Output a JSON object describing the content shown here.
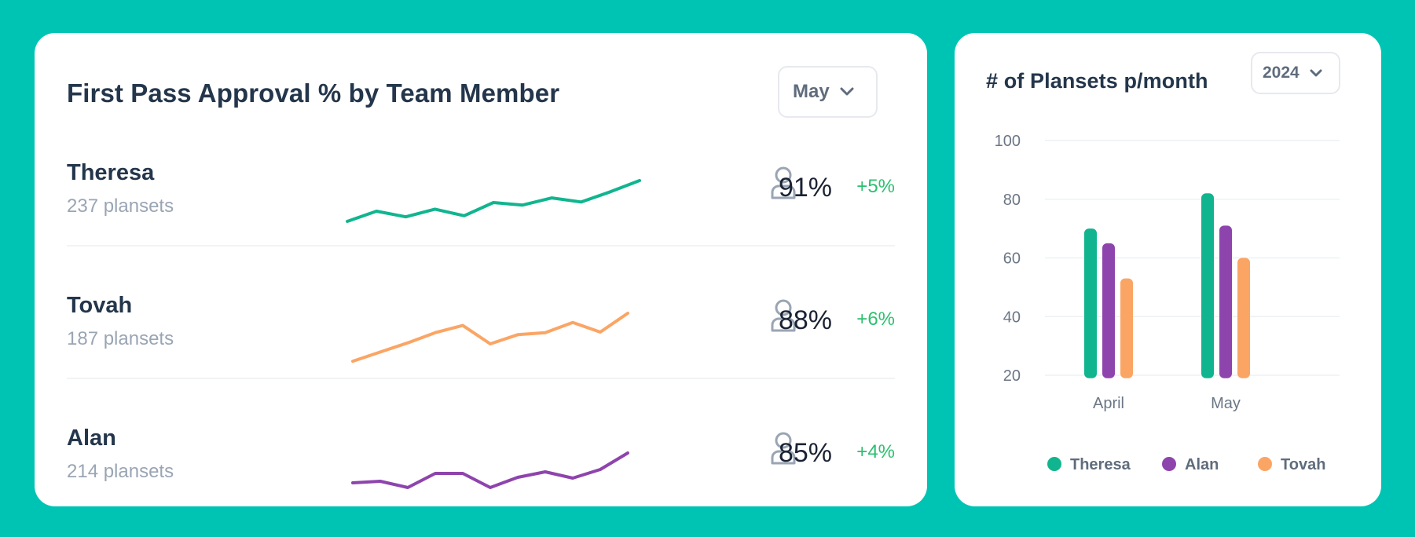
{
  "left_panel": {
    "title": "First Pass Approval % by Team Member",
    "month_select": "May",
    "members": [
      {
        "name": "Theresa",
        "count": "237 plansets",
        "percent": "91%",
        "delta": "+5%",
        "color": "#10B58F",
        "trend": [
          20,
          40,
          29,
          44,
          31,
          57,
          52,
          66,
          58,
          78,
          100
        ]
      },
      {
        "name": "Tovah",
        "count": "187 plansets",
        "percent": "88%",
        "delta": "+6%",
        "color": "#FBA565",
        "trend": [
          6,
          24,
          42,
          62,
          76,
          40,
          58,
          62,
          82,
          63,
          100
        ]
      },
      {
        "name": "Alan",
        "count": "214 plansets",
        "percent": "85%",
        "delta": "+4%",
        "color": "#8E44AD",
        "trend": [
          24,
          28,
          12,
          48,
          48,
          12,
          38,
          52,
          36,
          58,
          100
        ]
      }
    ]
  },
  "right_panel": {
    "title": "# of Plansets p/month",
    "year_select": "2024"
  },
  "chart_data": {
    "type": "bar",
    "title": "# of Plansets p/month",
    "categories": [
      "April",
      "May"
    ],
    "series": [
      {
        "name": "Theresa",
        "values": [
          70,
          82
        ],
        "color": "#10B58F"
      },
      {
        "name": "Alan",
        "values": [
          65,
          71
        ],
        "color": "#8E44AD"
      },
      {
        "name": "Tovah",
        "values": [
          53,
          60
        ],
        "color": "#FBA565"
      }
    ],
    "y_ticks": [
      100,
      80,
      60,
      40,
      20
    ],
    "ylim": [
      20,
      100
    ],
    "baseline": 19,
    "xlabel": "",
    "ylabel": "",
    "grid": true,
    "legend": "bottom"
  }
}
